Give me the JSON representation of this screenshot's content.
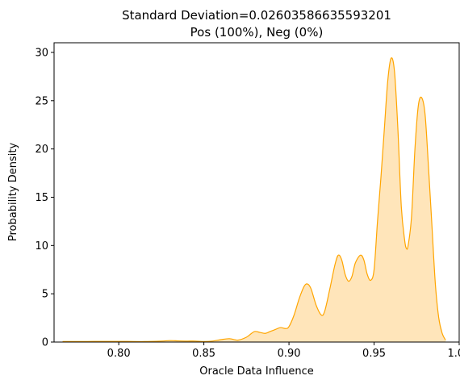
{
  "chart_data": {
    "type": "area",
    "title_lines": [
      "Standard Deviation=0.02603586635593201",
      "Pos (100%), Neg (0%)"
    ],
    "xlabel": "Oracle Data Influence",
    "ylabel": "Probability Density",
    "xlim": [
      0.762,
      1.0
    ],
    "ylim": [
      0,
      31
    ],
    "xticks": [
      0.8,
      0.85,
      0.9,
      0.95,
      1.0
    ],
    "xtick_labels": [
      "0.80",
      "0.85",
      "0.90",
      "0.95",
      "1.00"
    ],
    "yticks": [
      0,
      5,
      10,
      15,
      20,
      25,
      30
    ],
    "ytick_labels": [
      "0",
      "5",
      "10",
      "15",
      "20",
      "25",
      "30"
    ],
    "grid": false,
    "colors": {
      "line": "#FFA500",
      "fill": "#FFE5BA"
    },
    "series": [
      {
        "x": [
          0.767,
          0.775,
          0.785,
          0.795,
          0.805,
          0.815,
          0.825,
          0.83,
          0.835,
          0.84,
          0.845,
          0.85,
          0.855,
          0.86,
          0.865,
          0.87,
          0.875,
          0.878,
          0.88,
          0.883,
          0.886,
          0.889,
          0.892,
          0.895,
          0.898,
          0.9,
          0.903,
          0.906,
          0.909,
          0.911,
          0.913,
          0.916,
          0.919,
          0.921,
          0.924,
          0.927,
          0.929,
          0.931,
          0.933,
          0.935,
          0.937,
          0.939,
          0.942,
          0.944,
          0.946,
          0.948,
          0.95,
          0.952,
          0.954,
          0.956,
          0.958,
          0.96,
          0.962,
          0.964,
          0.966,
          0.968,
          0.969,
          0.97,
          0.972,
          0.974,
          0.976,
          0.978,
          0.98,
          0.982,
          0.984,
          0.986,
          0.988,
          0.99,
          0.992
        ],
        "y": [
          0.05,
          0.05,
          0.06,
          0.06,
          0.06,
          0.05,
          0.1,
          0.15,
          0.12,
          0.1,
          0.1,
          0.05,
          0.1,
          0.25,
          0.35,
          0.2,
          0.5,
          0.9,
          1.1,
          1.0,
          0.9,
          1.1,
          1.3,
          1.5,
          1.4,
          1.6,
          2.8,
          4.5,
          5.8,
          6.0,
          5.5,
          3.8,
          2.8,
          3.2,
          5.5,
          8.0,
          9.0,
          8.5,
          7.0,
          6.3,
          6.8,
          8.2,
          9.0,
          8.5,
          7.0,
          6.4,
          7.5,
          12.5,
          17.0,
          22.0,
          27.0,
          29.4,
          28.0,
          22.0,
          14.0,
          10.5,
          9.7,
          10.0,
          13.0,
          20.0,
          24.5,
          25.3,
          23.5,
          18.0,
          12.0,
          6.0,
          2.5,
          0.9,
          0.2
        ]
      }
    ]
  }
}
